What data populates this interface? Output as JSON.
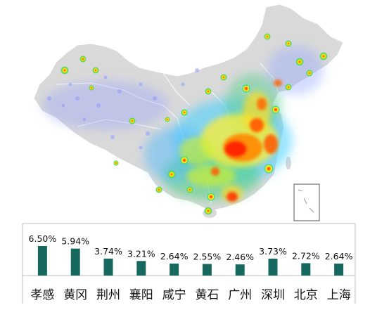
{
  "colors": {
    "land": "#d9d9d9",
    "border": "#ffffff",
    "bar": "#17695f",
    "axis": "#bfbfbf"
  },
  "heat_legend": [
    "low-blue",
    "cyan",
    "green",
    "yellow",
    "orange",
    "red-high"
  ],
  "chart_data": {
    "type": "bar",
    "categories": [
      "孝感",
      "黄冈",
      "荆州",
      "襄阳",
      "咸宁",
      "黄石",
      "广州",
      "深圳",
      "北京",
      "上海"
    ],
    "values": [
      6.5,
      5.94,
      3.74,
      3.21,
      2.64,
      2.55,
      2.46,
      3.73,
      2.72,
      2.64
    ],
    "value_labels": [
      "6.50%",
      "5.94%",
      "3.74%",
      "3.21%",
      "2.64%",
      "2.55%",
      "2.46%",
      "3.73%",
      "2.72%",
      "2.64%"
    ],
    "ylim": [
      0,
      7
    ],
    "grid": false
  }
}
